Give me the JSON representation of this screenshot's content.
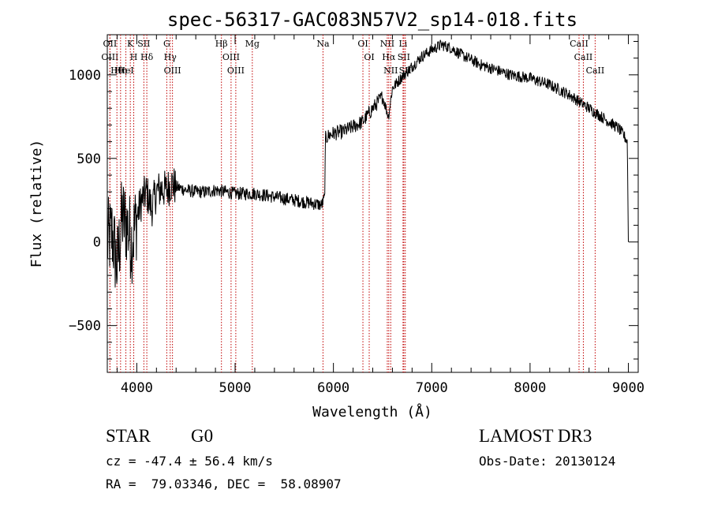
{
  "chart_data": {
    "type": "line",
    "title": "spec-56317-GAC083N57V2_sp14-018.fits",
    "xlabel": "Wavelength (Å)",
    "ylabel": "Flux (relative)",
    "xlim": [
      3700,
      9100
    ],
    "ylim": [
      -780,
      1240
    ],
    "xticks": [
      4000,
      5000,
      6000,
      7000,
      8000,
      9000
    ],
    "yticks": [
      -500,
      0,
      500,
      1000
    ],
    "grid": false,
    "series": [
      {
        "name": "flux",
        "x": [
          3700,
          3750,
          3800,
          3850,
          3900,
          3950,
          4000,
          4050,
          4100,
          4150,
          4200,
          4250,
          4300,
          4350,
          4400,
          4450,
          4500,
          4600,
          4700,
          4800,
          4900,
          5000,
          5100,
          5200,
          5300,
          5400,
          5500,
          5600,
          5700,
          5800,
          5880,
          5910,
          5920,
          5960,
          6000,
          6100,
          6200,
          6300,
          6400,
          6500,
          6560,
          6600,
          6700,
          6800,
          6900,
          7000,
          7100,
          7200,
          7300,
          7400,
          7500,
          7600,
          7700,
          7800,
          7900,
          8000,
          8100,
          8200,
          8300,
          8400,
          8500,
          8600,
          8700,
          8800,
          8900,
          8950,
          8990,
          9000
        ],
        "y": [
          0,
          50,
          -150,
          150,
          100,
          0,
          150,
          250,
          300,
          200,
          300,
          320,
          310,
          350,
          330,
          320,
          310,
          300,
          300,
          310,
          300,
          290,
          290,
          290,
          280,
          270,
          260,
          250,
          240,
          230,
          220,
          260,
          620,
          640,
          650,
          660,
          690,
          720,
          800,
          870,
          750,
          920,
          990,
          1050,
          1110,
          1150,
          1180,
          1160,
          1120,
          1090,
          1060,
          1040,
          1020,
          1000,
          990,
          980,
          960,
          940,
          910,
          880,
          840,
          800,
          760,
          720,
          680,
          640,
          600,
          0
        ]
      }
    ],
    "lines": [
      {
        "label": "Hθ",
        "x": 3798
      },
      {
        "label": "OII",
        "x": 3727
      },
      {
        "label": "OIII",
        "x": 3727
      },
      {
        "label": "Hη",
        "x": 3835
      },
      {
        "label": "HeI",
        "x": 3889
      },
      {
        "label": "K",
        "x": 3934
      },
      {
        "label": "H",
        "x": 3969
      },
      {
        "label": "SII",
        "x": 4072
      },
      {
        "label": "Hδ",
        "x": 4102
      },
      {
        "label": "OIII",
        "x": 4363
      },
      {
        "label": "Hγ",
        "x": 4340
      },
      {
        "label": "G",
        "x": 4305
      },
      {
        "label": "Hβ",
        "x": 4861
      },
      {
        "label": "OIII",
        "x": 4959
      },
      {
        "label": "OIII",
        "x": 5007
      },
      {
        "label": "Mg",
        "x": 5175
      },
      {
        "label": "Na",
        "x": 5894
      },
      {
        "label": "OI",
        "x": 6300
      },
      {
        "label": "OI",
        "x": 6364
      },
      {
        "label": "NII",
        "x": 6548
      },
      {
        "label": "Hα",
        "x": 6563
      },
      {
        "label": "NII",
        "x": 6583
      },
      {
        "label": "SII",
        "x": 6716
      },
      {
        "label": "SII",
        "x": 6731
      },
      {
        "label": "Li",
        "x": 6708
      },
      {
        "label": "CaII",
        "x": 8498
      },
      {
        "label": "CaII",
        "x": 8542
      },
      {
        "label": "CaII",
        "x": 8662
      }
    ]
  },
  "info": {
    "object_class": "STAR",
    "subclass": "G0",
    "cz": "cz = -47.4 ± 56.4 km/s",
    "coords": "RA =  79.03346, DEC =  58.08907",
    "survey": "LAMOST DR3",
    "obs_date": "Obs-Date: 20130124"
  }
}
